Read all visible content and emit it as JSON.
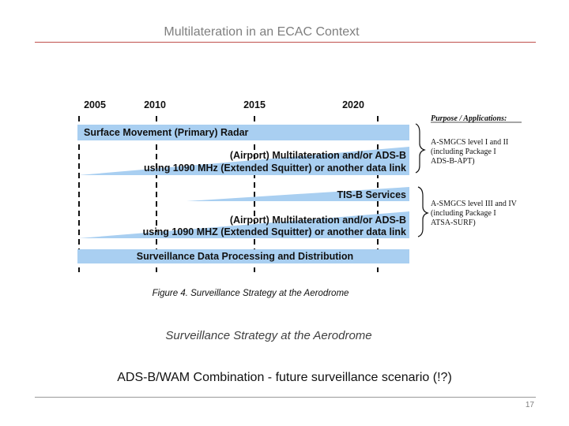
{
  "slide": {
    "title": "Multilateration in an ECAC Context",
    "caption": "Surveillance Strategy at the Aerodrome",
    "subtitle": "ADS-B/WAM Combination - future surveillance scenario (!?)",
    "page_number": "17"
  },
  "figure": {
    "years": [
      "2005",
      "2010",
      "2015",
      "2020"
    ],
    "bars": [
      {
        "lines": [
          "Surface Movement (Primary) Radar"
        ]
      },
      {
        "lines": [
          "(Airport) Multilateration and/or ADS-B",
          "using 1090 MHz (Extended Squitter) or another data link"
        ]
      },
      {
        "lines": [
          "TIS-B Services"
        ]
      },
      {
        "lines": [
          "(Airport) Multilateration and/or ADS-B",
          "using 1090 MHZ (Extended Squitter) or another data link"
        ]
      },
      {
        "lines": [
          "Surveillance Data Processing and Distribution"
        ]
      }
    ],
    "caption": "Figure 4. Surveillance Strategy at the Aerodrome",
    "applications": {
      "heading": "Purpose / Applications:",
      "group1": [
        "A-SMGCS level I and II",
        "(including Package I",
        "ADS-B-APT)"
      ],
      "group2": [
        "A-SMGCS level III and IV",
        "(including Package I",
        "ATSA-SURF)"
      ]
    },
    "colors": {
      "bar": "#a9cff1",
      "bar_light": "#cfe4f7",
      "rule": "#c0504d"
    }
  }
}
